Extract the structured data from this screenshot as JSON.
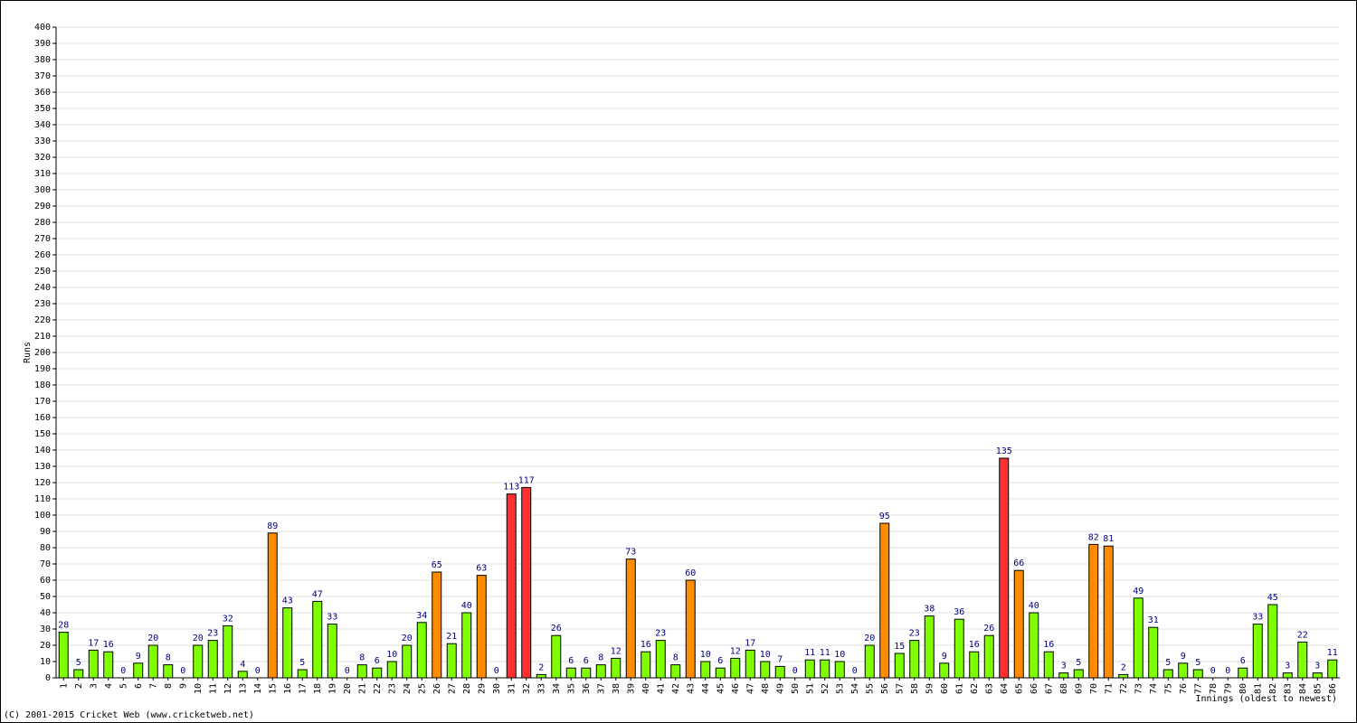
{
  "chart_data": {
    "type": "bar",
    "ylabel": "Runs",
    "xlabel": "Innings (oldest to newest)",
    "footer": "(C) 2001-2015 Cricket Web (www.cricketweb.net)",
    "categories": [
      "1",
      "2",
      "3",
      "4",
      "5",
      "6",
      "7",
      "8",
      "9",
      "10",
      "11",
      "12",
      "13",
      "14",
      "15",
      "16",
      "17",
      "18",
      "19",
      "20",
      "21",
      "22",
      "23",
      "24",
      "25",
      "26",
      "27",
      "28",
      "29",
      "30",
      "31",
      "32",
      "33",
      "34",
      "35",
      "36",
      "37",
      "38",
      "39",
      "40",
      "41",
      "42",
      "43",
      "44",
      "45",
      "46",
      "47",
      "48",
      "49",
      "50",
      "51",
      "52",
      "53",
      "54",
      "55",
      "56",
      "57",
      "58",
      "59",
      "60",
      "61",
      "62",
      "63",
      "64",
      "65",
      "66",
      "67",
      "68",
      "69",
      "70",
      "71",
      "72",
      "73",
      "74",
      "75",
      "76",
      "77",
      "78",
      "79",
      "80",
      "81",
      "82",
      "83",
      "84",
      "85",
      "86"
    ],
    "values": [
      28,
      5,
      17,
      16,
      0,
      9,
      20,
      8,
      0,
      20,
      23,
      32,
      4,
      0,
      89,
      43,
      5,
      47,
      33,
      0,
      8,
      6,
      10,
      20,
      34,
      65,
      21,
      40,
      63,
      0,
      113,
      117,
      2,
      26,
      6,
      6,
      8,
      12,
      73,
      16,
      23,
      8,
      60,
      10,
      6,
      12,
      17,
      10,
      7,
      0,
      11,
      11,
      10,
      0,
      20,
      95,
      15,
      23,
      38,
      9,
      36,
      16,
      26,
      135,
      66,
      40,
      16,
      3,
      5,
      82,
      81,
      2,
      49,
      31,
      5,
      9,
      5,
      0,
      0,
      6,
      33,
      45,
      3,
      22,
      3,
      11
    ],
    "colors": [
      "#80ff00",
      "#80ff00",
      "#80ff00",
      "#80ff00",
      "#80ff00",
      "#80ff00",
      "#80ff00",
      "#80ff00",
      "#80ff00",
      "#80ff00",
      "#80ff00",
      "#80ff00",
      "#80ff00",
      "#80ff00",
      "#ff8c00",
      "#80ff00",
      "#80ff00",
      "#80ff00",
      "#80ff00",
      "#80ff00",
      "#80ff00",
      "#80ff00",
      "#80ff00",
      "#80ff00",
      "#80ff00",
      "#ff8c00",
      "#80ff00",
      "#80ff00",
      "#ff8c00",
      "#80ff00",
      "#ff3030",
      "#ff3030",
      "#80ff00",
      "#80ff00",
      "#80ff00",
      "#80ff00",
      "#80ff00",
      "#80ff00",
      "#ff8c00",
      "#80ff00",
      "#80ff00",
      "#80ff00",
      "#ff8c00",
      "#80ff00",
      "#80ff00",
      "#80ff00",
      "#80ff00",
      "#80ff00",
      "#80ff00",
      "#80ff00",
      "#80ff00",
      "#80ff00",
      "#80ff00",
      "#80ff00",
      "#80ff00",
      "#ff8c00",
      "#80ff00",
      "#80ff00",
      "#80ff00",
      "#80ff00",
      "#80ff00",
      "#80ff00",
      "#80ff00",
      "#ff3030",
      "#ff8c00",
      "#80ff00",
      "#80ff00",
      "#80ff00",
      "#80ff00",
      "#ff8c00",
      "#ff8c00",
      "#80ff00",
      "#80ff00",
      "#80ff00",
      "#80ff00",
      "#80ff00",
      "#80ff00",
      "#80ff00",
      "#80ff00",
      "#80ff00",
      "#80ff00",
      "#80ff00",
      "#80ff00",
      "#80ff00",
      "#80ff00",
      "#80ff00"
    ],
    "label_color": "#000080",
    "ylim": [
      0,
      400
    ],
    "yticks": [
      0,
      10,
      20,
      30,
      40,
      50,
      60,
      70,
      80,
      90,
      100,
      110,
      120,
      130,
      140,
      150,
      160,
      170,
      180,
      190,
      200,
      210,
      220,
      230,
      240,
      250,
      260,
      270,
      280,
      290,
      300,
      310,
      320,
      330,
      340,
      350,
      360,
      370,
      380,
      390,
      400
    ],
    "grid": true
  }
}
